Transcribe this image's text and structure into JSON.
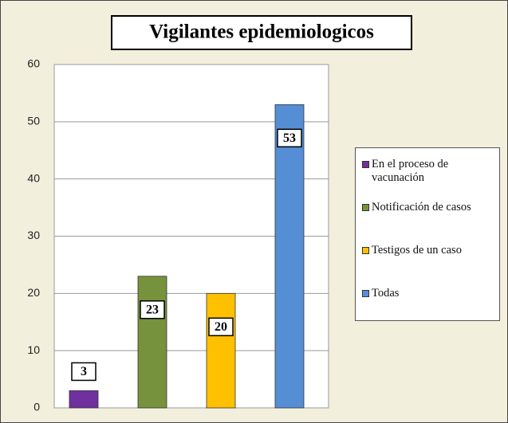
{
  "chart_data": {
    "type": "bar",
    "title": "Vigilantes epidemiologicos",
    "series": [
      {
        "name": "En el proceso de vacunación",
        "color": "#7030a0",
        "values": [
          3
        ]
      },
      {
        "name": "Notificación de casos",
        "color": "#76923c",
        "values": [
          23
        ]
      },
      {
        "name": "Testigos de un caso",
        "color": "#ffc000",
        "values": [
          20
        ]
      },
      {
        "name": "Todas",
        "color": "#558ed5",
        "values": [
          53
        ]
      }
    ],
    "ylim": [
      0,
      60
    ],
    "yticks": [
      0,
      10,
      20,
      30,
      40,
      50,
      60
    ],
    "grid": true,
    "legend": "right"
  }
}
